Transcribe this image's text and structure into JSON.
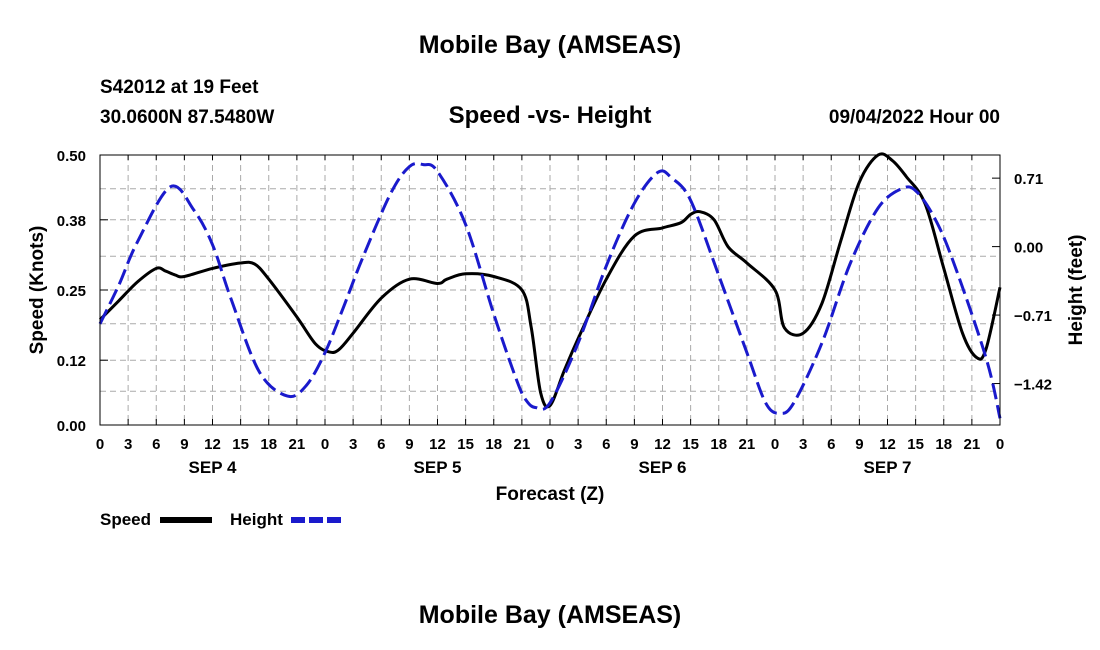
{
  "header": {
    "title": "Mobile Bay (AMSEAS)",
    "station": "S42012 at 19 Feet",
    "location": "30.0600N  87.5480W",
    "chart_title": "Speed -vs- Height",
    "datetime": "09/04/2022 Hour 00"
  },
  "footer": {
    "title": "Mobile Bay (AMSEAS)"
  },
  "legend": {
    "speed_label": "Speed",
    "height_label": "Height"
  },
  "colors": {
    "speed": "#000000",
    "height": "#1a1acc",
    "grid": "#aaaaaa"
  },
  "chart_data": {
    "type": "line",
    "title": "Speed -vs- Height",
    "xlabel": "Forecast (Z)",
    "ylabel": "Speed (Knots)",
    "y2label": "Height (feet)",
    "x_unit": "hours from 09/04/2022 00Z",
    "xlim": [
      0,
      96
    ],
    "ylim": [
      0,
      0.5
    ],
    "y2lim": [
      -1.85,
      0.95
    ],
    "x_tick_labels": [
      "0",
      "3",
      "6",
      "9",
      "12",
      "15",
      "18",
      "21",
      "0",
      "3",
      "6",
      "9",
      "12",
      "15",
      "18",
      "21",
      "0",
      "3",
      "6",
      "9",
      "12",
      "15",
      "18",
      "21",
      "0",
      "3",
      "6",
      "9",
      "12",
      "15",
      "18",
      "21",
      "0"
    ],
    "day_labels": [
      "SEP 4",
      "SEP 5",
      "SEP 6",
      "SEP 7"
    ],
    "day_label_hours": [
      12,
      36,
      60,
      84
    ],
    "y_ticks": [
      0.0,
      0.12,
      0.25,
      0.38,
      0.5
    ],
    "y_tick_labels": [
      "0.00",
      "0.12",
      "0.25",
      "0.38",
      "0.50"
    ],
    "y2_ticks": [
      0.71,
      0.0,
      -0.71,
      -1.42
    ],
    "y2_tick_labels": [
      "0.71",
      "0.00",
      "-0.71",
      "-1.42"
    ],
    "series": [
      {
        "name": "Speed",
        "axis": "left",
        "x": [
          0,
          2,
          4,
          6,
          7,
          8,
          9,
          12,
          15,
          16.5,
          18,
          21,
          23,
          24.5,
          25.5,
          27,
          30,
          33,
          36,
          37,
          39,
          42,
          45,
          46,
          47,
          48,
          49.5,
          51,
          54,
          57,
          60,
          62,
          63,
          64,
          65.5,
          67,
          69,
          72,
          73,
          75,
          77,
          79,
          81,
          83,
          84.5,
          86,
          88,
          90,
          92,
          93.5,
          94.5,
          96
        ],
        "values": [
          0.195,
          0.23,
          0.265,
          0.29,
          0.285,
          0.278,
          0.275,
          0.29,
          0.3,
          0.298,
          0.27,
          0.2,
          0.15,
          0.135,
          0.14,
          0.17,
          0.235,
          0.27,
          0.262,
          0.27,
          0.28,
          0.275,
          0.25,
          0.18,
          0.06,
          0.036,
          0.1,
          0.16,
          0.27,
          0.35,
          0.365,
          0.375,
          0.39,
          0.395,
          0.38,
          0.33,
          0.3,
          0.25,
          0.18,
          0.17,
          0.225,
          0.34,
          0.45,
          0.5,
          0.49,
          0.46,
          0.41,
          0.29,
          0.17,
          0.125,
          0.14,
          0.255
        ]
      },
      {
        "name": "Height",
        "axis": "right",
        "x": [
          0,
          2,
          4,
          7.5,
          10,
          12,
          14,
          17,
          20,
          22,
          24,
          26,
          28,
          31,
          33,
          34.5,
          36,
          39,
          42,
          44.5,
          45.5,
          46.5,
          48,
          51,
          54,
          57,
          59.5,
          61,
          63,
          66,
          69,
          71,
          72.5,
          74,
          77,
          80,
          83,
          85.5,
          87,
          89,
          91,
          94.5,
          96
        ],
        "values": [
          -0.8,
          -0.4,
          0.05,
          0.62,
          0.38,
          0.02,
          -0.55,
          -1.3,
          -1.55,
          -1.44,
          -1.1,
          -0.62,
          -0.12,
          0.55,
          0.83,
          0.85,
          0.78,
          0.23,
          -0.7,
          -1.4,
          -1.6,
          -1.67,
          -1.62,
          -1.0,
          -0.2,
          0.45,
          0.77,
          0.71,
          0.48,
          -0.3,
          -1.1,
          -1.62,
          -1.73,
          -1.62,
          -1.0,
          -0.18,
          0.4,
          0.6,
          0.58,
          0.3,
          -0.15,
          -1.15,
          -1.78
        ]
      }
    ]
  }
}
